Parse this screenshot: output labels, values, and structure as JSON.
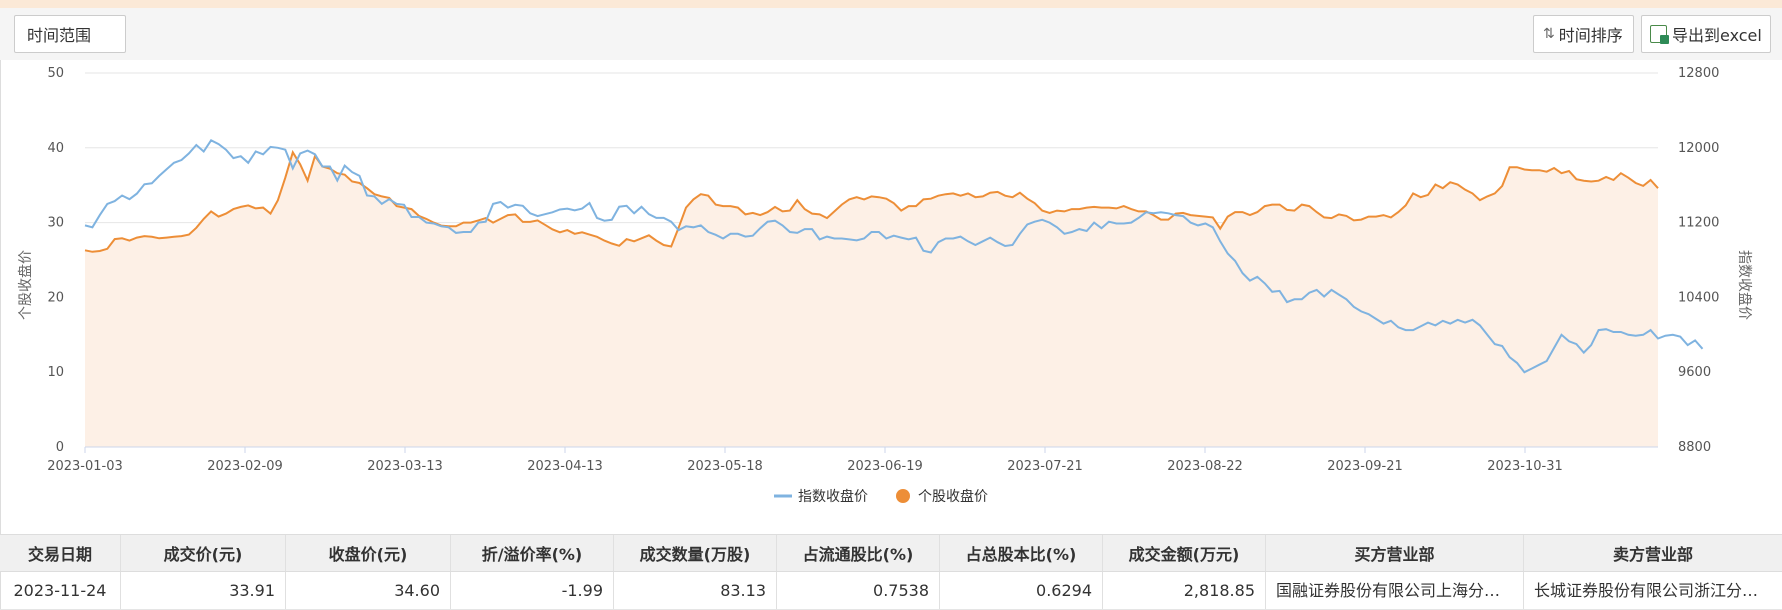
{
  "toolbar": {
    "range_label": "时间范围",
    "sort_label": "时间排序",
    "export_label": "导出到excel"
  },
  "chart_data": {
    "type": "line",
    "y_left": {
      "label": "个股收盘价",
      "ticks": [
        0,
        10,
        20,
        30,
        40,
        50
      ],
      "ylim": [
        0,
        50
      ]
    },
    "y_right": {
      "label": "指数收盘价",
      "ticks": [
        8800,
        9600,
        10400,
        11200,
        12000,
        12800
      ],
      "ylim": [
        8800,
        12800
      ]
    },
    "x_tick_labels": [
      "2023-01-03",
      "2023-02-09",
      "2023-03-13",
      "2023-04-13",
      "2023-05-18",
      "2023-06-19",
      "2023-07-21",
      "2023-08-22",
      "2023-09-21",
      "2023-10-31"
    ],
    "grid": true,
    "legend": "bottom-center",
    "colors": {
      "index": "#7fb3e0",
      "stock": "#ed8e37",
      "stock_fill": "#fdf0e6"
    },
    "series": [
      {
        "name": "指数收盘价",
        "axis": "right",
        "values": [
          11170,
          11150,
          11280,
          11400,
          11430,
          11490,
          11450,
          11510,
          11610,
          11620,
          11700,
          11770,
          11840,
          11870,
          11940,
          12030,
          11960,
          12080,
          12040,
          11980,
          11890,
          11910,
          11840,
          11960,
          11930,
          12010,
          12000,
          11980,
          11780,
          11940,
          11970,
          11930,
          11800,
          11800,
          11650,
          11810,
          11740,
          11700,
          11490,
          11480,
          11400,
          11450,
          11400,
          11390,
          11260,
          11260,
          11200,
          11190,
          11160,
          11150,
          11090,
          11100,
          11100,
          11200,
          11210,
          11400,
          11420,
          11360,
          11390,
          11380,
          11300,
          11270,
          11290,
          11310,
          11340,
          11350,
          11330,
          11350,
          11410,
          11250,
          11220,
          11230,
          11370,
          11380,
          11300,
          11370,
          11290,
          11250,
          11250,
          11210,
          11120,
          11160,
          11150,
          11170,
          11100,
          11070,
          11030,
          11080,
          11080,
          11050,
          11060,
          11140,
          11210,
          11220,
          11170,
          11100,
          11090,
          11130,
          11130,
          11020,
          11050,
          11030,
          11030,
          11020,
          11010,
          11030,
          11100,
          11100,
          11030,
          11060,
          11040,
          11020,
          11040,
          10900,
          10880,
          10990,
          11030,
          11030,
          11050,
          11000,
          10960,
          11000,
          11040,
          10990,
          10950,
          10960,
          11080,
          11180,
          11210,
          11230,
          11200,
          11150,
          11080,
          11100,
          11130,
          11110,
          11200,
          11140,
          11210,
          11190,
          11190,
          11200,
          11250,
          11310,
          11300,
          11310,
          11300,
          11280,
          11270,
          11200,
          11170,
          11190,
          11150,
          11000,
          10870,
          10790,
          10660,
          10580,
          10620,
          10550,
          10460,
          10470,
          10350,
          10380,
          10380,
          10450,
          10480,
          10410,
          10480,
          10430,
          10380,
          10300,
          10250,
          10220,
          10170,
          10120,
          10150,
          10080,
          10050,
          10050,
          10090,
          10130,
          10100,
          10150,
          10120,
          10160,
          10130,
          10160,
          10100,
          10000,
          9900,
          9880,
          9760,
          9700,
          9600,
          9640,
          9680,
          9720,
          9860,
          10000,
          9930,
          9900,
          9810,
          9890,
          10050,
          10060,
          10030,
          10030,
          10000,
          9990,
          10000,
          10050,
          9960,
          9990,
          10000,
          9980,
          9890,
          9940,
          9850
        ]
      },
      {
        "name": "个股收盘价",
        "axis": "left",
        "values": [
          26.3,
          26.1,
          26.2,
          26.5,
          27.8,
          27.9,
          27.6,
          28.0,
          28.2,
          28.1,
          27.9,
          28.0,
          28.1,
          28.2,
          28.4,
          29.3,
          30.5,
          31.5,
          30.8,
          31.2,
          31.8,
          32.1,
          32.3,
          31.9,
          32.0,
          31.2,
          33.0,
          36.0,
          39.4,
          37.8,
          35.6,
          38.9,
          37.5,
          37.2,
          36.6,
          36.4,
          35.5,
          35.3,
          34.6,
          33.8,
          33.5,
          33.3,
          32.2,
          32.0,
          31.8,
          30.9,
          30.5,
          30.0,
          29.6,
          29.5,
          29.5,
          30.0,
          30.0,
          30.3,
          30.6,
          30.0,
          30.5,
          31.0,
          31.1,
          30.1,
          30.1,
          30.3,
          29.7,
          29.1,
          28.7,
          29.0,
          28.5,
          28.7,
          28.4,
          28.1,
          27.6,
          27.2,
          26.9,
          27.8,
          27.5,
          27.9,
          28.3,
          27.6,
          27.0,
          26.8,
          29.3,
          32.0,
          33.1,
          33.8,
          33.6,
          32.4,
          32.2,
          32.2,
          32.0,
          31.1,
          31.3,
          31.0,
          31.4,
          32.1,
          31.5,
          31.6,
          33.0,
          31.8,
          31.2,
          31.1,
          30.6,
          31.5,
          32.4,
          33.1,
          33.4,
          33.1,
          33.5,
          33.4,
          33.2,
          32.6,
          31.6,
          32.2,
          32.2,
          33.1,
          33.2,
          33.6,
          33.8,
          33.9,
          33.6,
          33.9,
          33.4,
          33.5,
          34.0,
          34.1,
          33.6,
          33.4,
          34.0,
          33.2,
          32.6,
          31.6,
          31.3,
          31.6,
          31.5,
          31.8,
          31.8,
          32.0,
          32.1,
          32.0,
          32.0,
          31.9,
          32.2,
          31.8,
          31.5,
          31.5,
          31.0,
          30.4,
          30.4,
          31.2,
          31.3,
          31.0,
          30.9,
          30.8,
          30.7,
          29.2,
          30.8,
          31.4,
          31.4,
          31.0,
          31.4,
          32.2,
          32.4,
          32.4,
          31.7,
          31.6,
          32.4,
          32.2,
          31.4,
          30.7,
          30.6,
          31.1,
          30.9,
          30.3,
          30.4,
          30.8,
          30.8,
          31.0,
          30.7,
          31.4,
          32.3,
          33.9,
          33.4,
          33.7,
          35.1,
          34.6,
          35.4,
          35.1,
          34.4,
          33.9,
          33.0,
          33.5,
          33.9,
          34.9,
          37.4,
          37.4,
          37.1,
          37.0,
          37.0,
          36.8,
          37.3,
          36.6,
          36.9,
          35.8,
          35.6,
          35.5,
          35.6,
          36.1,
          35.7,
          36.6,
          36.0,
          35.3,
          34.9,
          35.7,
          34.6
        ]
      }
    ]
  },
  "table": {
    "headers": [
      "交易日期",
      "成交价(元)",
      "收盘价(元)",
      "折/溢价率(%)",
      "成交数量(万股)",
      "占流通股比(%)",
      "占总股本比(%)",
      "成交金额(万元)",
      "买方营业部",
      "卖方营业部"
    ],
    "rows": [
      [
        "2023-11-24",
        "33.91",
        "34.60",
        "-1.99",
        "83.13",
        "0.7538",
        "0.6294",
        "2,818.85",
        "国融证券股份有限公司上海分…",
        "长城证券股份有限公司浙江分…"
      ]
    ]
  }
}
